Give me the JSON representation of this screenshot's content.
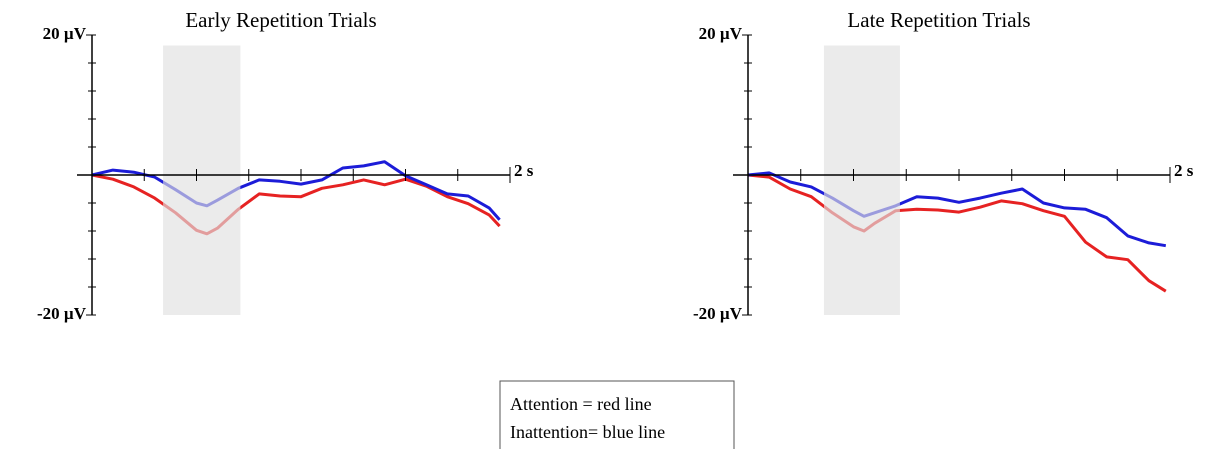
{
  "chart_data": [
    {
      "type": "line",
      "title": "Early Repetition Trials",
      "x": [
        0,
        0.1,
        0.2,
        0.3,
        0.4,
        0.5,
        0.55,
        0.6,
        0.7,
        0.8,
        0.9,
        1.0,
        1.1,
        1.2,
        1.3,
        1.4,
        1.5,
        1.6,
        1.7,
        1.8,
        1.9,
        1.95
      ],
      "series": [
        {
          "name": "Attention = red line",
          "color": "#e62222",
          "values": [
            0,
            -0.6,
            -1.7,
            -3.3,
            -5.4,
            -7.9,
            -8.4,
            -7.6,
            -4.9,
            -2.7,
            -3,
            -3.1,
            -1.9,
            -1.4,
            -0.7,
            -1.4,
            -0.6,
            -1.6,
            -3.1,
            -4.1,
            -5.7,
            -7.3
          ]
        },
        {
          "name": "Inattention= blue line",
          "color": "#1c1cd8",
          "values": [
            0,
            0.7,
            0.4,
            -0.3,
            -2.1,
            -4,
            -4.4,
            -3.6,
            -1.9,
            -0.7,
            -0.9,
            -1.3,
            -0.7,
            1,
            1.3,
            1.9,
            -0.1,
            -1.4,
            -2.7,
            -3,
            -4.7,
            -6.4
          ]
        }
      ],
      "xlim": [
        0,
        2
      ],
      "xticks": [
        {
          "value": 2,
          "label": "2 s"
        }
      ],
      "xminor": [
        0.25,
        0.5,
        0.75,
        1,
        1.25,
        1.5,
        1.75
      ],
      "ylim": [
        -20,
        20
      ],
      "yticks": [
        {
          "value": -20,
          "label": "-20 µV"
        },
        {
          "value": 20,
          "label": "20 µV"
        }
      ],
      "yminor": [
        -16,
        -12,
        -8,
        -4,
        4,
        8,
        12,
        16
      ],
      "shaded_region": {
        "x": [
          0.34,
          0.71
        ],
        "y": [
          -20,
          18.5
        ]
      }
    },
    {
      "type": "line",
      "title": "Late Repetition Trials",
      "x": [
        0,
        0.1,
        0.2,
        0.3,
        0.4,
        0.5,
        0.55,
        0.6,
        0.7,
        0.8,
        0.9,
        1.0,
        1.1,
        1.2,
        1.3,
        1.4,
        1.5,
        1.6,
        1.7,
        1.8,
        1.9,
        1.98
      ],
      "series": [
        {
          "color": "#e62222",
          "values": [
            0,
            -0.3,
            -2,
            -3.1,
            -5.4,
            -7.4,
            -8,
            -6.9,
            -5.1,
            -4.9,
            -5,
            -5.3,
            -4.6,
            -3.7,
            -4.1,
            -5.1,
            -5.9,
            -9.6,
            -11.7,
            -12.1,
            -15.1,
            -16.6
          ]
        },
        {
          "color": "#1c1cd8",
          "values": [
            0,
            0.3,
            -1,
            -1.7,
            -3.3,
            -5.1,
            -5.9,
            -5.4,
            -4.4,
            -3.1,
            -3.3,
            -3.9,
            -3.3,
            -2.6,
            -2,
            -4,
            -4.7,
            -4.9,
            -6.1,
            -8.7,
            -9.7,
            -10.1
          ]
        }
      ],
      "xlim": [
        0,
        2
      ],
      "xticks": [
        {
          "value": 2,
          "label": "2 s"
        }
      ],
      "xminor": [
        0.25,
        0.5,
        0.75,
        1,
        1.25,
        1.5,
        1.75
      ],
      "ylim": [
        -20,
        20
      ],
      "yticks": [
        {
          "value": -20,
          "label": "-20 µV"
        },
        {
          "value": 20,
          "label": "20 µV"
        }
      ],
      "yminor": [
        -16,
        -12,
        -8,
        -4,
        4,
        8,
        12,
        16
      ],
      "shaded_region": {
        "x": [
          0.36,
          0.72
        ],
        "y": [
          -20,
          18.5
        ]
      }
    }
  ]
}
